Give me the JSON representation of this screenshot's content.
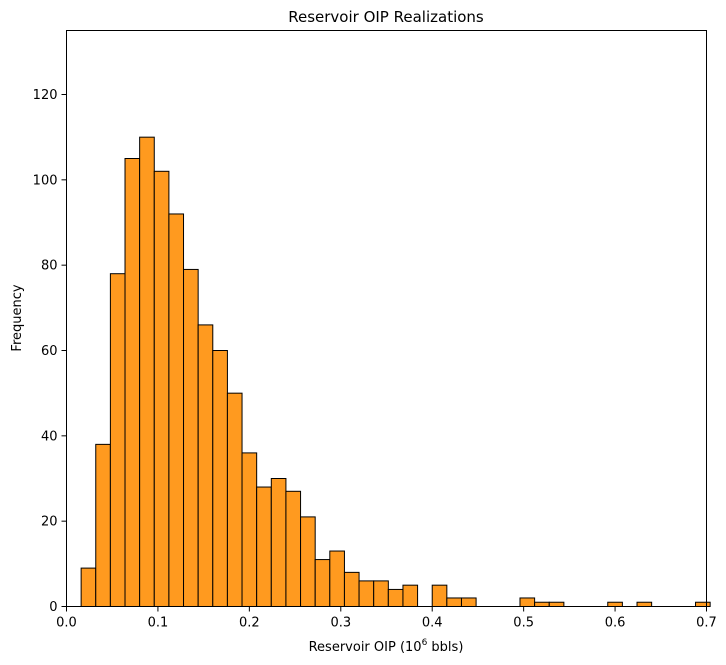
{
  "chart_data": {
    "type": "bar",
    "subtype": "histogram",
    "title": "Reservoir OIP Realizations",
    "xlabel": "Reservoir OIP (10",
    "xlabel_superscript": "6",
    "xlabel_suffix": " bbls)",
    "ylabel": "Frequency",
    "xlim": [
      0.0,
      0.7
    ],
    "ylim": [
      0,
      135
    ],
    "xticks": [
      0.0,
      0.1,
      0.2,
      0.3,
      0.4,
      0.5,
      0.6,
      0.7
    ],
    "xtick_labels": [
      "0.0",
      "0.1",
      "0.2",
      "0.3",
      "0.4",
      "0.5",
      "0.6",
      "0.7"
    ],
    "yticks": [
      0,
      20,
      40,
      60,
      80,
      100,
      120
    ],
    "ytick_labels": [
      "0",
      "20",
      "40",
      "60",
      "80",
      "100",
      "120"
    ],
    "bar_color": "#ff9a1f",
    "edge_color": "#000000",
    "grid": false,
    "bins": [
      {
        "start": 0.016,
        "end": 0.032,
        "count": 9
      },
      {
        "start": 0.032,
        "end": 0.048,
        "count": 38
      },
      {
        "start": 0.048,
        "end": 0.064,
        "count": 78
      },
      {
        "start": 0.064,
        "end": 0.08,
        "count": 105
      },
      {
        "start": 0.08,
        "end": 0.096,
        "count": 110
      },
      {
        "start": 0.096,
        "end": 0.112,
        "count": 102
      },
      {
        "start": 0.112,
        "end": 0.128,
        "count": 92
      },
      {
        "start": 0.128,
        "end": 0.144,
        "count": 79
      },
      {
        "start": 0.144,
        "end": 0.16,
        "count": 66
      },
      {
        "start": 0.16,
        "end": 0.176,
        "count": 60
      },
      {
        "start": 0.176,
        "end": 0.192,
        "count": 50
      },
      {
        "start": 0.192,
        "end": 0.208,
        "count": 36
      },
      {
        "start": 0.208,
        "end": 0.224,
        "count": 28
      },
      {
        "start": 0.224,
        "end": 0.24,
        "count": 30
      },
      {
        "start": 0.24,
        "end": 0.256,
        "count": 27
      },
      {
        "start": 0.256,
        "end": 0.272,
        "count": 21
      },
      {
        "start": 0.272,
        "end": 0.288,
        "count": 11
      },
      {
        "start": 0.288,
        "end": 0.304,
        "count": 13
      },
      {
        "start": 0.304,
        "end": 0.32,
        "count": 8
      },
      {
        "start": 0.32,
        "end": 0.336,
        "count": 6
      },
      {
        "start": 0.336,
        "end": 0.352,
        "count": 6
      },
      {
        "start": 0.352,
        "end": 0.368,
        "count": 4
      },
      {
        "start": 0.368,
        "end": 0.384,
        "count": 5
      },
      {
        "start": 0.4,
        "end": 0.416,
        "count": 5
      },
      {
        "start": 0.416,
        "end": 0.432,
        "count": 2
      },
      {
        "start": 0.432,
        "end": 0.448,
        "count": 2
      },
      {
        "start": 0.496,
        "end": 0.512,
        "count": 2
      },
      {
        "start": 0.512,
        "end": 0.528,
        "count": 1
      },
      {
        "start": 0.528,
        "end": 0.544,
        "count": 1
      },
      {
        "start": 0.592,
        "end": 0.608,
        "count": 1
      },
      {
        "start": 0.624,
        "end": 0.64,
        "count": 1
      },
      {
        "start": 0.688,
        "end": 0.704,
        "count": 1
      }
    ]
  }
}
